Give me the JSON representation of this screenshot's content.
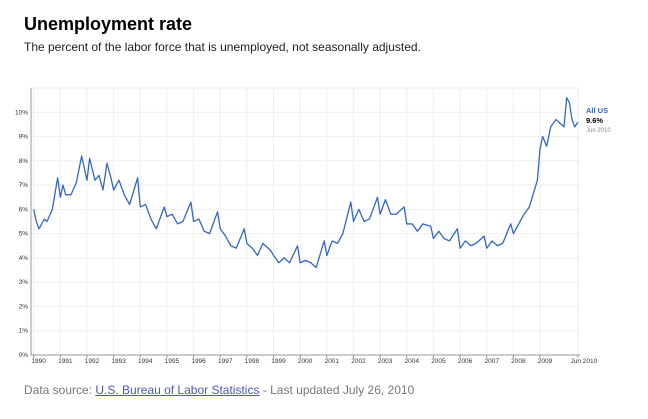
{
  "header": {
    "title": "Unemployment rate",
    "subtitle": "The percent of the labor force that is unemployed, not seasonally adjusted."
  },
  "footer": {
    "prefix": "Data source: ",
    "source_link": "U.S. Bureau of Labor Statistics",
    "suffix": " - Last updated July 26, 2010"
  },
  "colors": {
    "line": "#3366cc",
    "grid": "#eeeeee",
    "axis": "#999999"
  },
  "chart_data": {
    "type": "line",
    "title": "Unemployment rate",
    "subtitle": "The percent of the labor force that is unemployed, not seasonally adjusted.",
    "xlabel": "",
    "ylabel": "",
    "xlim": [
      1989.9,
      2010.5
    ],
    "ylim": [
      0,
      11
    ],
    "grid": true,
    "y_ticks": [
      "0%",
      "1%",
      "2%",
      "3%",
      "4%",
      "5%",
      "6%",
      "7%",
      "8%",
      "9%",
      "10%"
    ],
    "x_ticks": [
      "1990",
      "1991",
      "1992",
      "1993",
      "1994",
      "1995",
      "1996",
      "1997",
      "1998",
      "1999",
      "2000",
      "2001",
      "2002",
      "2003",
      "2004",
      "2005",
      "2006",
      "2007",
      "2008",
      "2009",
      "Jun 2010"
    ],
    "series": [
      {
        "name": "All US",
        "last_value_label": "9.6%",
        "last_date_label": "Jun 2010",
        "x": [
          1990.0,
          1990.1,
          1990.2,
          1990.4,
          1990.5,
          1990.7,
          1990.9,
          1991.0,
          1991.1,
          1991.2,
          1991.4,
          1991.6,
          1991.8,
          1992.0,
          1992.1,
          1992.3,
          1992.45,
          1992.6,
          1992.75,
          1992.9,
          1993.0,
          1993.2,
          1993.4,
          1993.6,
          1993.9,
          1994.0,
          1994.2,
          1994.4,
          1994.6,
          1994.9,
          1995.0,
          1995.2,
          1995.4,
          1995.6,
          1995.9,
          1996.0,
          1996.2,
          1996.4,
          1996.6,
          1996.9,
          1997.0,
          1997.2,
          1997.4,
          1997.6,
          1997.9,
          1998.0,
          1998.2,
          1998.4,
          1998.6,
          1998.9,
          1999.0,
          1999.2,
          1999.4,
          1999.6,
          1999.9,
          2000.0,
          2000.2,
          2000.4,
          2000.6,
          2000.9,
          2001.0,
          2001.2,
          2001.4,
          2001.6,
          2001.9,
          2002.0,
          2002.2,
          2002.4,
          2002.6,
          2002.9,
          2003.0,
          2003.2,
          2003.4,
          2003.6,
          2003.9,
          2004.0,
          2004.2,
          2004.4,
          2004.6,
          2004.9,
          2005.0,
          2005.2,
          2005.4,
          2005.6,
          2005.9,
          2006.0,
          2006.2,
          2006.4,
          2006.6,
          2006.9,
          2007.0,
          2007.2,
          2007.4,
          2007.6,
          2007.9,
          2008.0,
          2008.2,
          2008.4,
          2008.6,
          2008.9,
          2009.0,
          2009.1,
          2009.25,
          2009.4,
          2009.6,
          2009.8,
          2009.9,
          2010.0,
          2010.1,
          2010.2,
          2010.3,
          2010.42
        ],
        "y": [
          6.0,
          5.5,
          5.2,
          5.6,
          5.5,
          6.0,
          7.3,
          6.5,
          7.0,
          6.6,
          6.6,
          7.1,
          8.2,
          7.2,
          8.1,
          7.2,
          7.4,
          6.8,
          7.9,
          7.3,
          6.8,
          7.2,
          6.6,
          6.2,
          7.3,
          6.1,
          6.2,
          5.6,
          5.2,
          6.1,
          5.7,
          5.8,
          5.4,
          5.5,
          6.3,
          5.5,
          5.6,
          5.1,
          5.0,
          5.9,
          5.2,
          4.9,
          4.5,
          4.4,
          5.2,
          4.6,
          4.4,
          4.1,
          4.6,
          4.3,
          4.1,
          3.8,
          4.0,
          3.8,
          4.5,
          3.8,
          3.9,
          3.8,
          3.6,
          4.7,
          4.1,
          4.7,
          4.6,
          5.0,
          6.3,
          5.5,
          6.0,
          5.5,
          5.6,
          6.5,
          5.8,
          6.4,
          5.8,
          5.8,
          6.1,
          5.4,
          5.4,
          5.1,
          5.4,
          5.3,
          4.8,
          5.1,
          4.8,
          4.7,
          5.2,
          4.4,
          4.7,
          4.5,
          4.6,
          4.9,
          4.4,
          4.7,
          4.5,
          4.6,
          5.4,
          5.0,
          5.4,
          5.8,
          6.1,
          7.2,
          8.5,
          9.0,
          8.6,
          9.4,
          9.7,
          9.5,
          9.4,
          10.6,
          10.4,
          9.7,
          9.4,
          9.6
        ]
      }
    ]
  }
}
